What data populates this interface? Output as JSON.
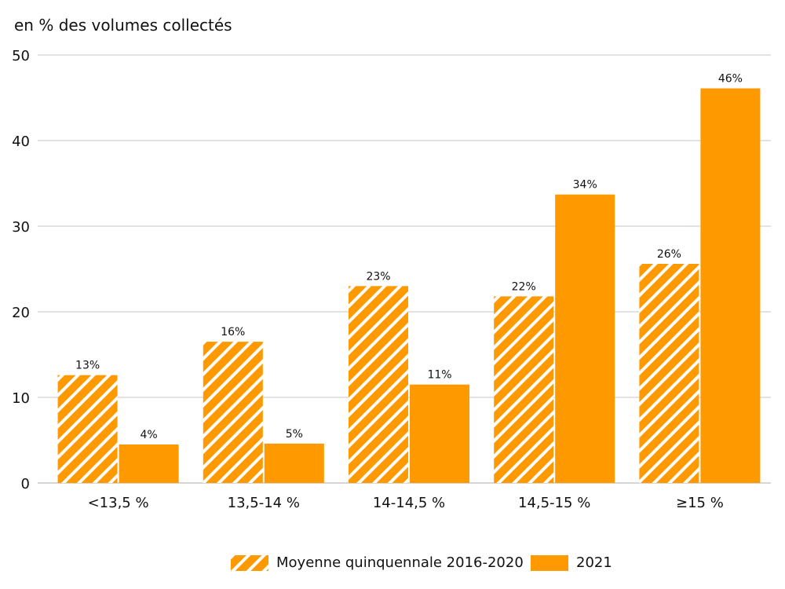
{
  "chart_data": {
    "type": "bar",
    "title": "",
    "ylabel": "en % des volumes collectés",
    "xlabel": "",
    "ylim": [
      0,
      50
    ],
    "yticks": [
      0,
      10,
      20,
      30,
      40,
      50
    ],
    "grid": true,
    "legend_position": "bottom",
    "categories": [
      "<13,5 %",
      "13,5-14 %",
      "14-14,5 %",
      "14,5-15 %",
      "≥15 %"
    ],
    "series": [
      {
        "name": "Moyenne quinquennale 2016-2020",
        "values": [
          12.6,
          16.5,
          23.0,
          21.8,
          25.6
        ],
        "labels": [
          "13%",
          "16%",
          "23%",
          "22%",
          "26%"
        ],
        "color": "#FF9900",
        "pattern": "hatched"
      },
      {
        "name": "2021",
        "values": [
          4.5,
          4.6,
          11.5,
          33.7,
          46.1
        ],
        "labels": [
          "4%",
          "5%",
          "11%",
          "34%",
          "46%"
        ],
        "color": "#FF9900",
        "pattern": "solid"
      }
    ]
  }
}
